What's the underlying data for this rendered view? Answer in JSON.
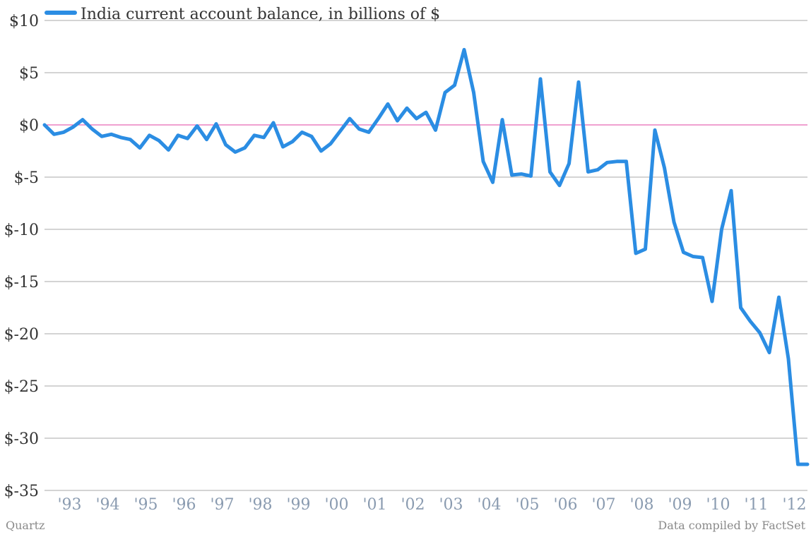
{
  "chart_data": {
    "type": "line",
    "title": "",
    "xlabel": "",
    "ylabel": "",
    "ylim": [
      -35,
      10
    ],
    "xlim": [
      1992.75,
      2012.75
    ],
    "y_ticks": [
      10,
      5,
      0,
      -5,
      -10,
      -15,
      -20,
      -25,
      -30,
      -35
    ],
    "y_tick_labels": [
      "$10",
      "$5",
      "$0",
      "$-5",
      "$-10",
      "$-15",
      "$-20",
      "$-25",
      "$-30",
      "$-35"
    ],
    "x_ticks": [
      1993,
      1994,
      1995,
      1996,
      1997,
      1998,
      1999,
      2000,
      2001,
      2002,
      2003,
      2004,
      2005,
      2006,
      2007,
      2008,
      2009,
      2010,
      2011,
      2012
    ],
    "x_tick_labels": [
      "'93",
      "'94",
      "'95",
      "'96",
      "'97",
      "'98",
      "'99",
      "'00",
      "'01",
      "'02",
      "'03",
      "'04",
      "'05",
      "'06",
      "'07",
      "'08",
      "'09",
      "'10",
      "'11",
      "'12"
    ],
    "grid": true,
    "zero_line_color": "#e040a0",
    "legend_position": "top-left",
    "series": [
      {
        "name": "India current account balance, in billions of $",
        "color": "#2b8de3",
        "x": [
          1992.75,
          1993.0,
          1993.25,
          1993.5,
          1993.75,
          1994.0,
          1994.25,
          1994.5,
          1994.75,
          1995.0,
          1995.25,
          1995.5,
          1995.75,
          1996.0,
          1996.25,
          1996.5,
          1996.75,
          1997.0,
          1997.25,
          1997.5,
          1997.75,
          1998.0,
          1998.25,
          1998.5,
          1998.75,
          1999.0,
          1999.25,
          1999.5,
          1999.75,
          2000.0,
          2000.25,
          2000.5,
          2000.75,
          2001.0,
          2001.25,
          2001.5,
          2001.75,
          2002.0,
          2002.25,
          2002.5,
          2002.75,
          2003.0,
          2003.25,
          2003.5,
          2003.75,
          2004.0,
          2004.25,
          2004.5,
          2004.75,
          2005.0,
          2005.25,
          2005.5,
          2005.75,
          2006.0,
          2006.25,
          2006.5,
          2006.75,
          2007.0,
          2007.25,
          2007.5,
          2007.75,
          2008.0,
          2008.25,
          2008.5,
          2008.75,
          2009.0,
          2009.25,
          2009.5,
          2009.75,
          2010.0,
          2010.25,
          2010.5,
          2010.75,
          2011.0,
          2011.25,
          2011.5,
          2011.75,
          2012.0,
          2012.25,
          2012.5,
          2012.75
        ],
        "values": [
          0.0,
          -0.9,
          -0.7,
          -0.2,
          0.5,
          -0.4,
          -1.1,
          -0.9,
          -1.2,
          -1.4,
          -2.2,
          -1.0,
          -1.5,
          -2.4,
          -1.0,
          -1.3,
          -0.1,
          -1.4,
          0.1,
          -1.9,
          -2.6,
          -2.2,
          -1.0,
          -1.2,
          0.2,
          -2.1,
          -1.6,
          -0.7,
          -1.1,
          -2.5,
          -1.8,
          -0.6,
          0.6,
          -0.4,
          -0.7,
          0.6,
          2.0,
          0.4,
          1.6,
          0.6,
          1.2,
          -0.5,
          3.1,
          3.8,
          7.2,
          3.1,
          -3.5,
          -5.5,
          0.5,
          -4.8,
          -4.7,
          -4.9,
          4.4,
          -4.5,
          -5.8,
          -3.7,
          4.1,
          -4.5,
          -4.3,
          -3.6,
          -3.5,
          -3.5,
          -12.3,
          -11.9,
          -0.5,
          -4.1,
          -9.3,
          -12.2,
          -12.6,
          -12.7,
          -16.9,
          -10.0,
          -6.3,
          -17.5,
          -18.8,
          -19.9,
          -21.8,
          -16.5,
          -22.4,
          -32.5,
          -32.5
        ]
      }
    ]
  },
  "footer": {
    "left": "Quartz",
    "right": "Data compiled by FactSet"
  }
}
